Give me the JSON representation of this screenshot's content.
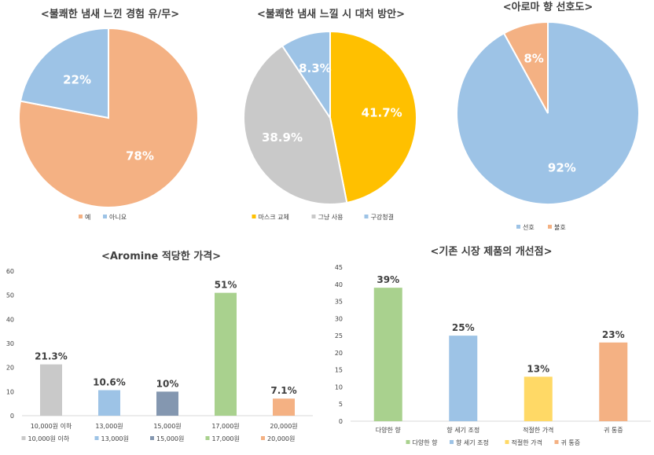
{
  "chart_data": [
    {
      "type": "pie",
      "title": "<불쾌한 냄새 느낀 경험 유/무>",
      "categories": [
        "예",
        "아니요"
      ],
      "values": [
        78,
        22
      ],
      "labels": [
        "78%",
        "22%"
      ],
      "colors": [
        "#f4b183",
        "#9dc3e6"
      ],
      "legend": "bottom"
    },
    {
      "type": "pie",
      "title": "<불쾌한 냄새 느낄 시 대처 방안>",
      "categories": [
        "마스크 교체",
        "그냥 사용",
        "구강청결"
      ],
      "values": [
        41.7,
        38.9,
        8.3
      ],
      "labels": [
        "41.7%",
        "38.9%",
        "8.3%"
      ],
      "colors": [
        "#ffc000",
        "#c9c9c9",
        "#9dc3e6"
      ],
      "legend": "bottom"
    },
    {
      "type": "pie",
      "title": "<아로마 향 선호도>",
      "categories": [
        "선호",
        "불호"
      ],
      "values": [
        92,
        8
      ],
      "labels": [
        "92%",
        "8%"
      ],
      "colors": [
        "#9dc3e6",
        "#f4b183"
      ],
      "legend": "bottom"
    },
    {
      "type": "bar",
      "title": "<Aromine 적당한 가격>",
      "categories": [
        "10,000원 이하",
        "13,000원",
        "15,000원",
        "17,000원",
        "20,000원"
      ],
      "values": [
        21.3,
        10.6,
        10,
        51,
        7.1
      ],
      "labels": [
        "21.3%",
        "10.6%",
        "10%",
        "51%",
        "7.1%"
      ],
      "colors": [
        "#c9c9c9",
        "#9dc3e6",
        "#8497b0",
        "#a9d18e",
        "#f4b183"
      ],
      "ylim": [
        0,
        60
      ],
      "yticks": [
        0,
        10,
        20,
        30,
        40,
        50,
        60
      ],
      "grid": false,
      "legend": "bottom"
    },
    {
      "type": "bar",
      "title": "<기존 시장 제품의 개선점>",
      "categories": [
        "다양한 향",
        "향 세기 조정",
        "적절한 가격",
        "귀 통증"
      ],
      "values": [
        39,
        25,
        13,
        23
      ],
      "labels": [
        "39%",
        "25%",
        "13%",
        "23%"
      ],
      "colors": [
        "#a9d18e",
        "#9dc3e6",
        "#ffd966",
        "#f4b183"
      ],
      "ylim": [
        0,
        45
      ],
      "yticks": [
        0,
        5,
        10,
        15,
        20,
        25,
        30,
        35,
        40,
        45
      ],
      "grid": false,
      "legend": "bottom"
    }
  ]
}
